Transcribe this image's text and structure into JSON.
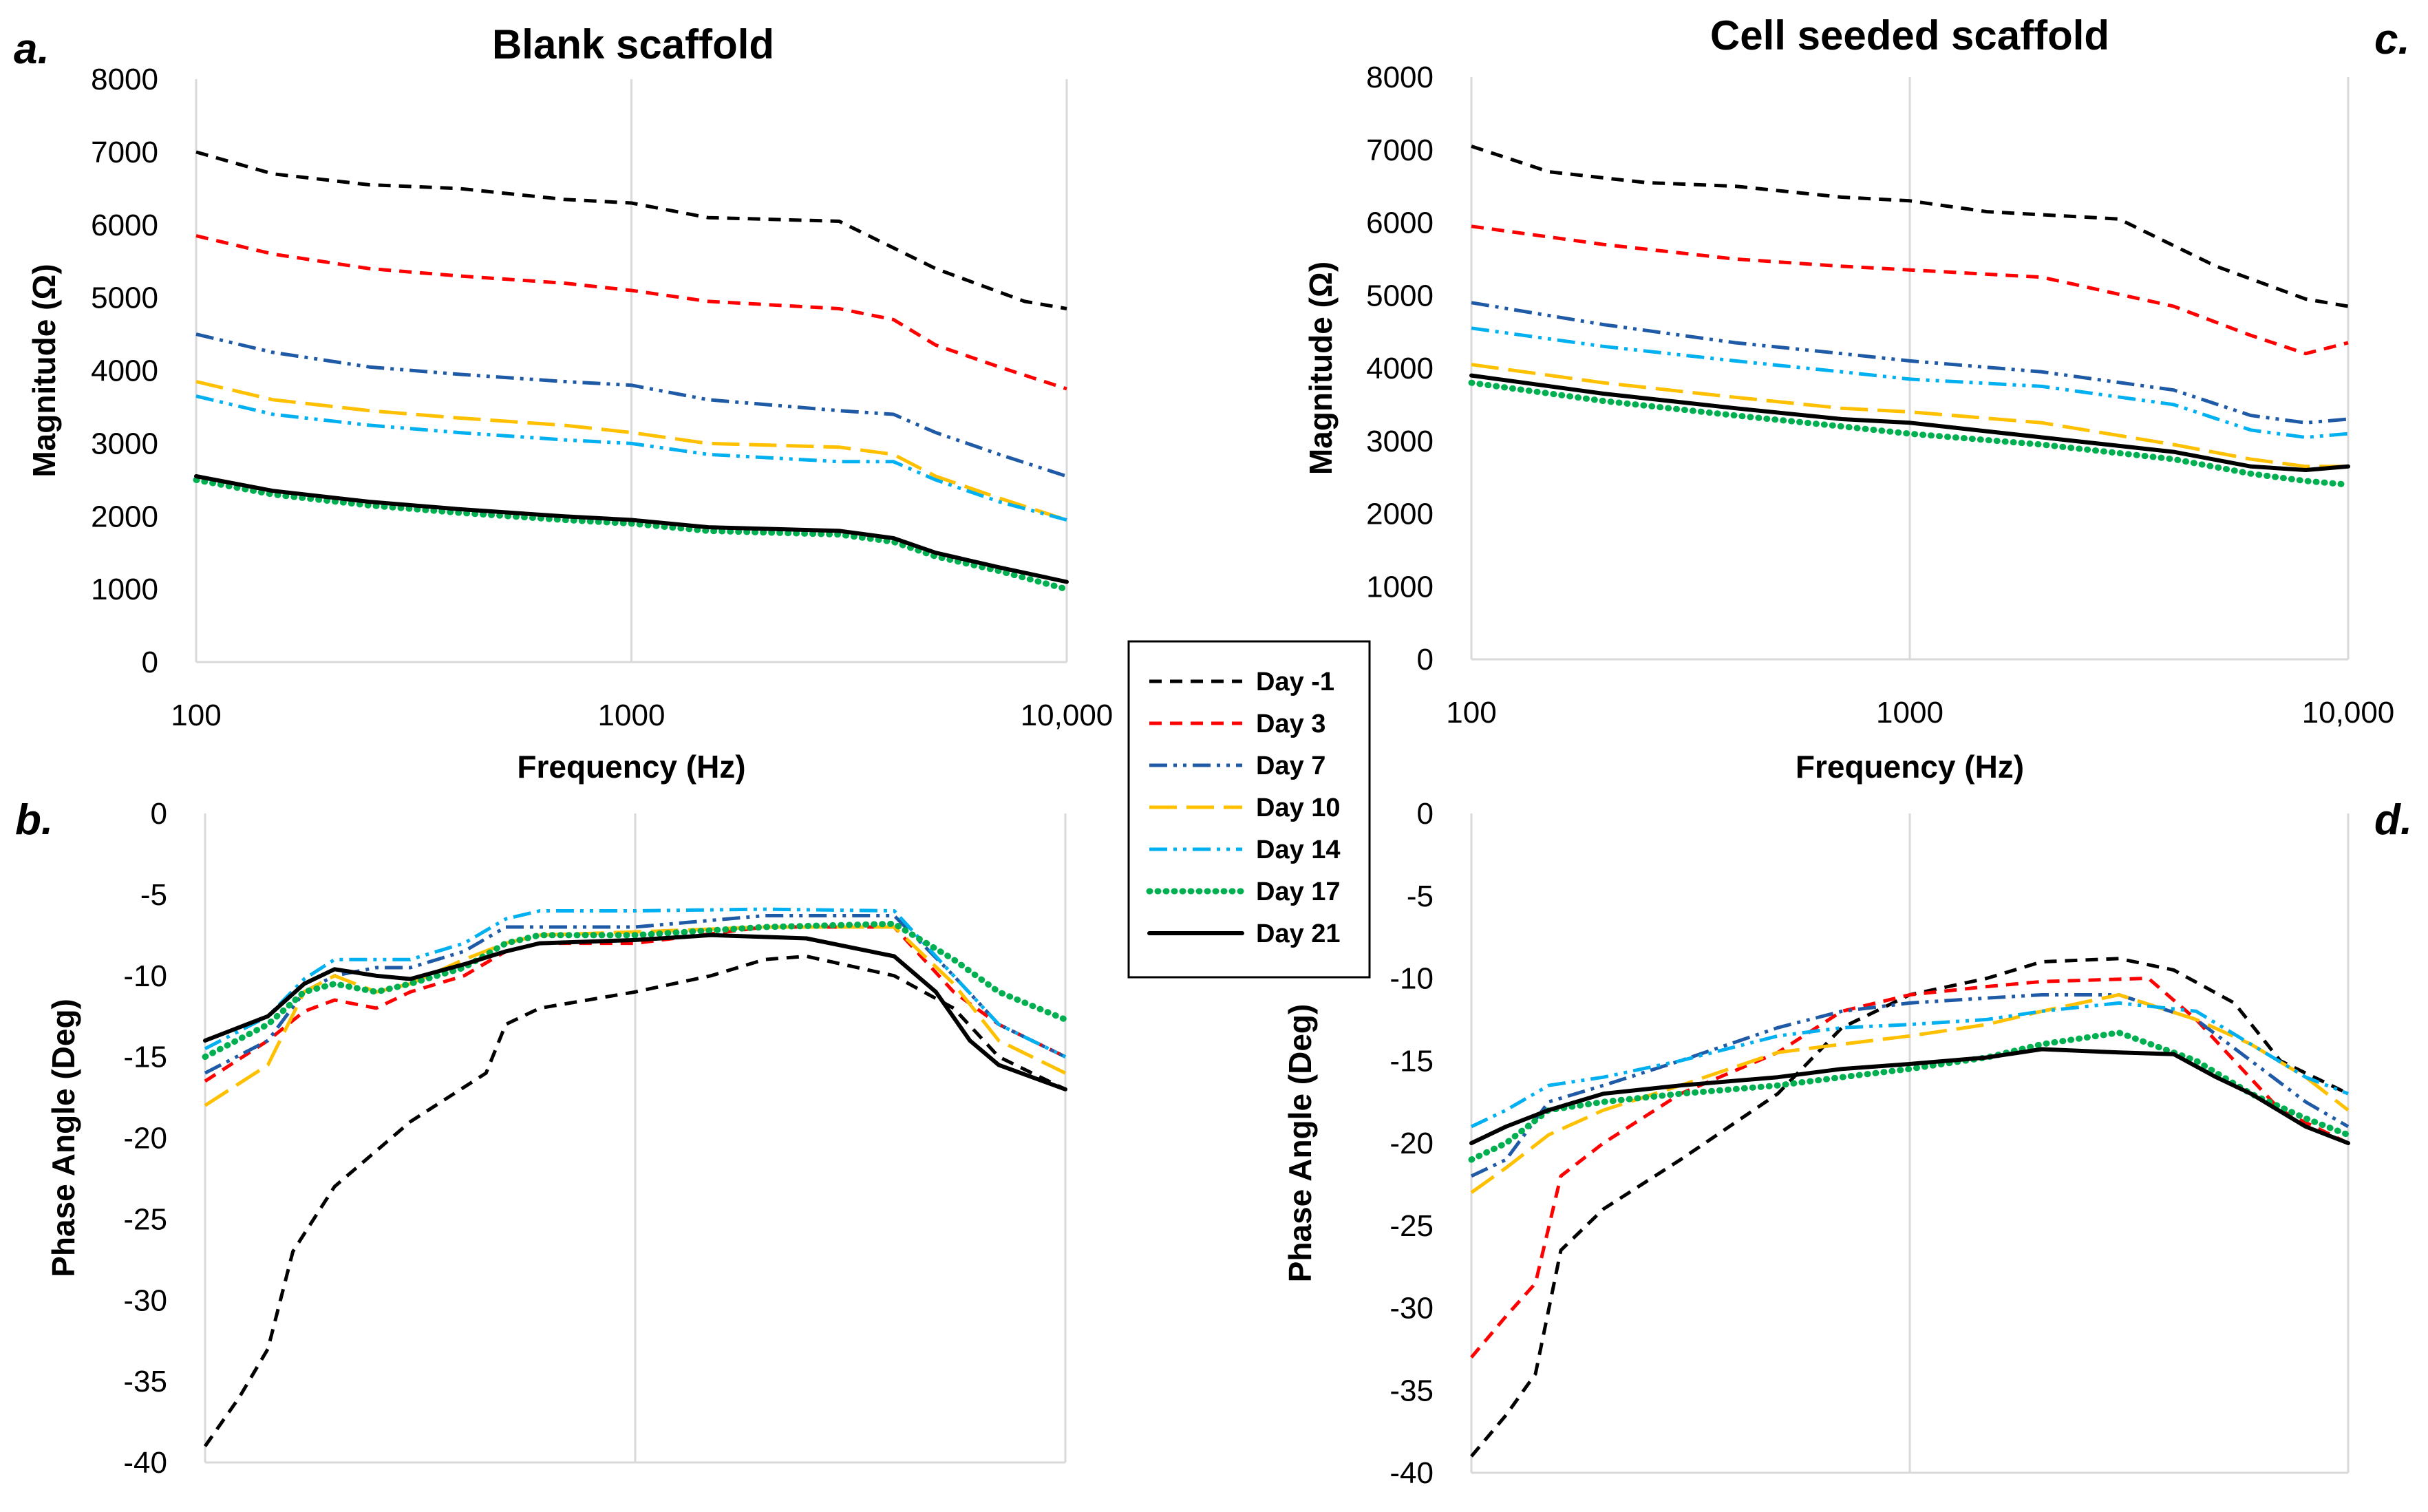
{
  "panel_letters": {
    "a": "a.",
    "b": "b.",
    "c": "c.",
    "d": "d."
  },
  "legend": [
    {
      "label": "Day -1",
      "color": "#000000",
      "style": "dash"
    },
    {
      "label": "Day 3",
      "color": "#ff0000",
      "style": "dash"
    },
    {
      "label": "Day 7",
      "color": "#1f5aa6",
      "style": "dashdotdot"
    },
    {
      "label": "Day 10",
      "color": "#ffc000",
      "style": "longdash"
    },
    {
      "label": "Day 14",
      "color": "#00b0f0",
      "style": "dashdotdot"
    },
    {
      "label": "Day 17",
      "color": "#00b050",
      "style": "dot"
    },
    {
      "label": "Day 21",
      "color": "#000000",
      "style": "solid"
    }
  ],
  "chart_data": [
    {
      "id": "a",
      "type": "line",
      "title": "Blank scaffold",
      "xlabel": "Frequency (Hz)",
      "ylabel": "Magnitude (Ω)",
      "xscale": "log",
      "xlim": [
        100,
        10000
      ],
      "ylim": [
        0,
        8000
      ],
      "xticks": [
        100,
        1000,
        10000
      ],
      "xtick_labels": [
        "100",
        "1000",
        "10,000"
      ],
      "yticks": [
        0,
        1000,
        2000,
        3000,
        4000,
        5000,
        6000,
        7000,
        8000
      ],
      "ytick_labels": [
        "0",
        "1000",
        "2000",
        "3000",
        "4000",
        "5000",
        "6000",
        "7000",
        "8000"
      ],
      "grid": "x",
      "series": [
        {
          "name": "Day -1",
          "x": [
            100,
            150,
            250,
            400,
            700,
            1000,
            1500,
            3000,
            5000,
            8000,
            10000
          ],
          "y": [
            7000,
            6700,
            6550,
            6500,
            6350,
            6300,
            6100,
            6050,
            5400,
            4950,
            4850
          ]
        },
        {
          "name": "Day 3",
          "x": [
            100,
            150,
            250,
            400,
            700,
            1000,
            1500,
            3000,
            4000,
            5000,
            7000,
            10000
          ],
          "y": [
            5850,
            5600,
            5400,
            5300,
            5200,
            5100,
            4950,
            4850,
            4700,
            4350,
            4050,
            3750
          ]
        },
        {
          "name": "Day 7",
          "x": [
            100,
            150,
            250,
            400,
            700,
            1000,
            1500,
            3000,
            4000,
            5000,
            7000,
            10000
          ],
          "y": [
            4500,
            4250,
            4050,
            3950,
            3850,
            3800,
            3600,
            3450,
            3400,
            3150,
            2850,
            2550
          ]
        },
        {
          "name": "Day 10",
          "x": [
            100,
            150,
            250,
            400,
            700,
            1000,
            1500,
            3000,
            4000,
            5000,
            7000,
            10000
          ],
          "y": [
            3850,
            3600,
            3450,
            3350,
            3250,
            3150,
            3000,
            2950,
            2850,
            2550,
            2250,
            1950
          ]
        },
        {
          "name": "Day 14",
          "x": [
            100,
            150,
            250,
            400,
            700,
            1000,
            1500,
            3000,
            4000,
            5000,
            7000,
            10000
          ],
          "y": [
            3650,
            3400,
            3250,
            3150,
            3050,
            3000,
            2850,
            2750,
            2750,
            2500,
            2200,
            1950
          ]
        },
        {
          "name": "Day 17",
          "x": [
            100,
            150,
            250,
            400,
            700,
            1000,
            1500,
            3000,
            4000,
            5000,
            7000,
            10000
          ],
          "y": [
            2500,
            2300,
            2150,
            2050,
            1950,
            1900,
            1800,
            1750,
            1650,
            1450,
            1250,
            1000
          ]
        },
        {
          "name": "Day 21",
          "x": [
            100,
            150,
            250,
            400,
            700,
            1000,
            1500,
            3000,
            4000,
            5000,
            7000,
            10000
          ],
          "y": [
            2550,
            2350,
            2200,
            2100,
            2000,
            1950,
            1850,
            1800,
            1700,
            1500,
            1300,
            1100
          ]
        }
      ]
    },
    {
      "id": "b",
      "type": "line",
      "title": "",
      "xlabel": "",
      "ylabel": "Phase Angle (Deg)",
      "xscale": "log",
      "xlim": [
        100,
        10000
      ],
      "ylim": [
        -40,
        0
      ],
      "xticks": [
        100,
        1000,
        10000
      ],
      "xtick_labels": [],
      "yticks": [
        0,
        -5,
        -10,
        -15,
        -20,
        -25,
        -30,
        -35,
        -40
      ],
      "ytick_labels": [
        "0",
        "-5",
        "-10",
        "-15",
        "-20",
        "-25",
        "-30",
        "-35",
        "-40"
      ],
      "grid": "x",
      "series": [
        {
          "name": "Day -1",
          "x": [
            100,
            120,
            140,
            160,
            200,
            300,
            450,
            500,
            600,
            1000,
            1500,
            2000,
            2500,
            4000,
            5500,
            7000,
            10000
          ],
          "y": [
            -39,
            -36,
            -33,
            -27,
            -23,
            -19,
            -16,
            -13,
            -12,
            -11,
            -10,
            -9,
            -8.8,
            -10,
            -12,
            -15,
            -17
          ]
        },
        {
          "name": "Day 3",
          "x": [
            100,
            140,
            170,
            200,
            250,
            300,
            400,
            500,
            600,
            1000,
            2000,
            4000,
            5500,
            7000,
            10000
          ],
          "y": [
            -16.5,
            -14,
            -12.2,
            -11.5,
            -12,
            -11,
            -10,
            -8.5,
            -8,
            -8,
            -7,
            -7,
            -11,
            -13,
            -15
          ]
        },
        {
          "name": "Day 7",
          "x": [
            100,
            140,
            170,
            200,
            250,
            300,
            400,
            500,
            600,
            1000,
            2000,
            4000,
            5500,
            7000,
            10000
          ],
          "y": [
            -16,
            -14,
            -11,
            -10,
            -9.5,
            -9.5,
            -8.5,
            -7,
            -7,
            -7,
            -6.3,
            -6.3,
            -10,
            -13,
            -15
          ]
        },
        {
          "name": "Day 10",
          "x": [
            100,
            140,
            170,
            200,
            250,
            300,
            400,
            500,
            600,
            1000,
            2000,
            4000,
            5500,
            7000,
            10000
          ],
          "y": [
            -18,
            -15.5,
            -11,
            -10,
            -11,
            -10.5,
            -9,
            -8,
            -7.5,
            -7.3,
            -7,
            -7,
            -10.5,
            -14,
            -16
          ]
        },
        {
          "name": "Day 14",
          "x": [
            100,
            140,
            170,
            200,
            250,
            300,
            400,
            500,
            600,
            1000,
            2000,
            4000,
            5500,
            7000,
            10000
          ],
          "y": [
            -14.5,
            -12.5,
            -10.2,
            -9,
            -9,
            -9,
            -8,
            -6.5,
            -6,
            -6,
            -5.9,
            -6,
            -10,
            -13,
            -15
          ]
        },
        {
          "name": "Day 17",
          "x": [
            100,
            140,
            170,
            200,
            250,
            300,
            400,
            500,
            600,
            1000,
            2000,
            4000,
            5500,
            7000,
            10000
          ],
          "y": [
            -15,
            -13,
            -11,
            -10.5,
            -11,
            -10.5,
            -9.5,
            -8,
            -7.5,
            -7.5,
            -7,
            -6.8,
            -9,
            -11,
            -12.7
          ]
        },
        {
          "name": "Day 21",
          "x": [
            100,
            140,
            170,
            200,
            250,
            300,
            400,
            500,
            600,
            1000,
            1500,
            2500,
            4000,
            5000,
            6000,
            7000,
            10000
          ],
          "y": [
            -14,
            -12.5,
            -10.5,
            -9.6,
            -10,
            -10.2,
            -9.3,
            -8.5,
            -8,
            -7.8,
            -7.5,
            -7.7,
            -8.8,
            -11,
            -14,
            -15.5,
            -17
          ]
        }
      ]
    },
    {
      "id": "c",
      "type": "line",
      "title": "Cell seeded scaffold",
      "xlabel": "Frequency (Hz)",
      "ylabel": "Magnitude (Ω)",
      "xscale": "log",
      "xlim": [
        100,
        10000
      ],
      "ylim": [
        0,
        8000
      ],
      "xticks": [
        100,
        1000,
        10000
      ],
      "xtick_labels": [
        "100",
        "1000",
        "10,000"
      ],
      "yticks": [
        0,
        1000,
        2000,
        3000,
        4000,
        5000,
        6000,
        7000,
        8000
      ],
      "ytick_labels": [
        "0",
        "1000",
        "2000",
        "3000",
        "4000",
        "5000",
        "6000",
        "7000",
        "8000"
      ],
      "grid": "x",
      "series": [
        {
          "name": "Day -1",
          "x": [
            100,
            150,
            250,
            400,
            700,
            1000,
            1500,
            3000,
            5000,
            8000,
            10000
          ],
          "y": [
            7050,
            6700,
            6550,
            6500,
            6350,
            6300,
            6150,
            6050,
            5400,
            4950,
            4850
          ]
        },
        {
          "name": "Day 3",
          "x": [
            100,
            200,
            400,
            700,
            1000,
            2000,
            4000,
            6000,
            8000,
            10000
          ],
          "y": [
            5950,
            5700,
            5500,
            5400,
            5350,
            5250,
            4850,
            4450,
            4200,
            4350
          ]
        },
        {
          "name": "Day 7",
          "x": [
            100,
            200,
            400,
            700,
            1000,
            2000,
            4000,
            6000,
            8000,
            10000
          ],
          "y": [
            4900,
            4600,
            4350,
            4200,
            4100,
            3950,
            3700,
            3350,
            3250,
            3300
          ]
        },
        {
          "name": "Day 10",
          "x": [
            100,
            200,
            400,
            700,
            1000,
            2000,
            4000,
            6000,
            8000,
            10000
          ],
          "y": [
            4050,
            3800,
            3600,
            3450,
            3400,
            3250,
            2950,
            2750,
            2650,
            2650
          ]
        },
        {
          "name": "Day 14",
          "x": [
            100,
            200,
            400,
            700,
            1000,
            2000,
            4000,
            6000,
            8000,
            10000
          ],
          "y": [
            4550,
            4300,
            4100,
            3950,
            3850,
            3750,
            3500,
            3150,
            3050,
            3100
          ]
        },
        {
          "name": "Day 17",
          "x": [
            100,
            200,
            400,
            700,
            1000,
            2000,
            4000,
            6000,
            8000,
            10000
          ],
          "y": [
            3800,
            3550,
            3350,
            3200,
            3100,
            2950,
            2750,
            2550,
            2450,
            2400
          ]
        },
        {
          "name": "Day 21",
          "x": [
            100,
            200,
            400,
            700,
            1000,
            2000,
            4000,
            6000,
            8000,
            10000
          ],
          "y": [
            3900,
            3650,
            3450,
            3300,
            3250,
            3050,
            2850,
            2650,
            2600,
            2650
          ]
        }
      ]
    },
    {
      "id": "d",
      "type": "line",
      "title": "",
      "xlabel": "",
      "ylabel": "Phase Angle (Deg)",
      "xscale": "log",
      "xlim": [
        100,
        10000
      ],
      "ylim": [
        -40,
        0
      ],
      "xticks": [
        100,
        1000,
        10000
      ],
      "xtick_labels": [],
      "yticks": [
        0,
        -5,
        -10,
        -15,
        -20,
        -25,
        -30,
        -35,
        -40
      ],
      "ytick_labels": [
        "0",
        "-5",
        "-10",
        "-15",
        "-20",
        "-25",
        "-30",
        "-35",
        "-40"
      ],
      "grid": "x",
      "series": [
        {
          "name": "Day -1",
          "x": [
            100,
            120,
            140,
            160,
            200,
            300,
            500,
            700,
            1000,
            1500,
            2000,
            3000,
            4000,
            5500,
            7000,
            10000
          ],
          "y": [
            -39,
            -36.5,
            -34,
            -26.5,
            -24,
            -21,
            -17,
            -13,
            -11,
            -10,
            -9,
            -8.8,
            -9.5,
            -11.5,
            -15,
            -17
          ]
        },
        {
          "name": "Day 3",
          "x": [
            100,
            120,
            140,
            160,
            200,
            300,
            500,
            700,
            1000,
            1500,
            2000,
            3500,
            4500,
            5500,
            7000,
            10000
          ],
          "y": [
            -33,
            -30.5,
            -28.5,
            -22,
            -20,
            -17,
            -14.5,
            -12,
            -11,
            -10.5,
            -10.2,
            -10,
            -12.5,
            -15,
            -18,
            -20
          ]
        },
        {
          "name": "Day 7",
          "x": [
            100,
            120,
            150,
            200,
            300,
            500,
            700,
            1000,
            1500,
            2000,
            3000,
            4500,
            6000,
            8000,
            10000
          ],
          "y": [
            -22,
            -21,
            -17.5,
            -16.5,
            -15,
            -13,
            -12,
            -11.5,
            -11.2,
            -11,
            -11,
            -12.5,
            -15,
            -17.5,
            -19
          ]
        },
        {
          "name": "Day 10",
          "x": [
            100,
            120,
            150,
            200,
            300,
            500,
            700,
            1000,
            1500,
            2000,
            3000,
            4500,
            6000,
            8000,
            10000
          ],
          "y": [
            -23,
            -21.5,
            -19.5,
            -18,
            -16.5,
            -14.5,
            -14,
            -13.5,
            -12.8,
            -12,
            -11,
            -12.5,
            -14,
            -16,
            -18
          ]
        },
        {
          "name": "Day 14",
          "x": [
            100,
            120,
            150,
            200,
            300,
            500,
            700,
            1000,
            1500,
            2000,
            3000,
            4500,
            6000,
            8000,
            10000
          ],
          "y": [
            -19,
            -18,
            -16.5,
            -16,
            -15,
            -13.5,
            -13,
            -12.8,
            -12.5,
            -12,
            -11.5,
            -12,
            -14,
            -16,
            -17
          ]
        },
        {
          "name": "Day 17",
          "x": [
            100,
            120,
            150,
            200,
            300,
            500,
            700,
            1000,
            1500,
            2000,
            3000,
            4500,
            6000,
            8000,
            10000
          ],
          "y": [
            -21,
            -20,
            -18,
            -17.5,
            -17,
            -16.5,
            -16,
            -15.5,
            -14.8,
            -14,
            -13.3,
            -15,
            -17,
            -18.5,
            -19.5
          ]
        },
        {
          "name": "Day 21",
          "x": [
            100,
            120,
            150,
            200,
            300,
            500,
            700,
            1000,
            1500,
            2000,
            3000,
            4000,
            5000,
            6000,
            8000,
            10000
          ],
          "y": [
            -20,
            -19,
            -18,
            -17,
            -16.5,
            -16,
            -15.5,
            -15.2,
            -14.8,
            -14.3,
            -14.5,
            -14.6,
            -16,
            -17,
            -19,
            -20
          ]
        }
      ]
    }
  ]
}
